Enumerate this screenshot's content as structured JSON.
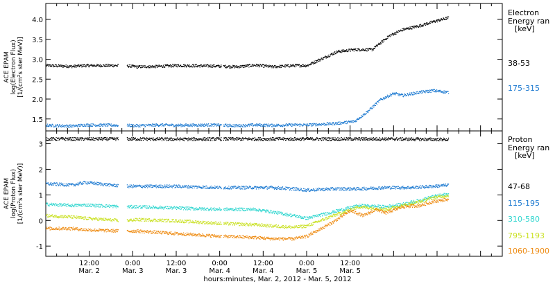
{
  "chart_data": [
    {
      "type": "scatter",
      "panel": "electron",
      "ylabel_lines": [
        "ACE EPAM",
        "log(Electron Flux)",
        "[1/(cm²s ster MeV)]"
      ],
      "ylim": [
        1.2,
        4.4
      ],
      "yticks": [
        1.5,
        2.0,
        2.5,
        3.0,
        3.5,
        4.0
      ],
      "ytick_labels": [
        "1.5",
        "2.0",
        "2.5",
        "3.0",
        "3.5",
        "4.0"
      ],
      "legend_title": [
        "Electron",
        "Energy ran",
        "[keV]"
      ],
      "series": [
        {
          "name": "38-53",
          "color": "#000000",
          "x": [
            0.0,
            0.3,
            0.45,
            0.9,
            1.05,
            1.3,
            1.5,
            1.9,
            2.2,
            2.4,
            2.6,
            2.85,
            3.0,
            3.2,
            3.35,
            3.55,
            3.75,
            3.95,
            4.1,
            4.3,
            4.45,
            4.63
          ],
          "y": [
            2.85,
            2.83,
            2.85,
            2.85,
            2.82,
            2.83,
            2.85,
            2.84,
            2.82,
            2.86,
            2.82,
            2.85,
            2.85,
            3.05,
            3.2,
            3.25,
            3.25,
            3.6,
            3.75,
            3.85,
            3.95,
            4.05
          ]
        },
        {
          "name": "175-315",
          "color": "#1a78d0",
          "x": [
            0.0,
            0.3,
            0.45,
            0.9,
            1.05,
            1.3,
            1.5,
            1.9,
            2.2,
            2.4,
            2.6,
            2.85,
            3.0,
            3.2,
            3.35,
            3.55,
            3.7,
            3.85,
            4.0,
            4.1,
            4.3,
            4.45,
            4.63
          ],
          "y": [
            1.35,
            1.33,
            1.36,
            1.35,
            1.34,
            1.36,
            1.35,
            1.36,
            1.34,
            1.36,
            1.35,
            1.36,
            1.36,
            1.38,
            1.4,
            1.45,
            1.7,
            2.0,
            2.15,
            2.1,
            2.18,
            2.22,
            2.18
          ]
        }
      ]
    },
    {
      "type": "scatter",
      "panel": "proton",
      "ylabel_lines": [
        "ACE EPAM",
        "log(Proton Flux)",
        "[1/(cm²s ster MeV)]"
      ],
      "ylim": [
        -1.4,
        3.5
      ],
      "yticks": [
        -1,
        0,
        1,
        2,
        3
      ],
      "ytick_labels": [
        "-1",
        "0",
        "1",
        "2",
        "3"
      ],
      "legend_title": [
        "Proton",
        "Energy ran",
        "[keV]"
      ],
      "series": [
        {
          "name": "47-68",
          "color": "#000000",
          "x": [
            0.0,
            0.5,
            1.0,
            1.5,
            2.0,
            2.5,
            3.0,
            3.5,
            4.0,
            4.63
          ],
          "y": [
            3.2,
            3.2,
            3.2,
            3.19,
            3.2,
            3.2,
            3.2,
            3.2,
            3.2,
            3.18
          ]
        },
        {
          "name": "115-195",
          "color": "#1a78d0",
          "x": [
            0.0,
            0.3,
            0.45,
            0.9,
            1.05,
            1.5,
            2.0,
            2.4,
            2.6,
            2.85,
            3.0,
            3.3,
            3.6,
            3.9,
            4.2,
            4.45,
            4.63
          ],
          "y": [
            1.45,
            1.4,
            1.5,
            1.35,
            1.35,
            1.35,
            1.3,
            1.3,
            1.3,
            1.25,
            1.2,
            1.25,
            1.25,
            1.3,
            1.3,
            1.35,
            1.4
          ]
        },
        {
          "name": "310-580",
          "color": "#2fd6cf",
          "x": [
            0.0,
            0.3,
            0.45,
            0.9,
            1.05,
            1.5,
            2.0,
            2.4,
            2.6,
            2.85,
            3.0,
            3.3,
            3.6,
            3.9,
            4.1,
            4.3,
            4.45,
            4.63
          ],
          "y": [
            0.65,
            0.6,
            0.62,
            0.55,
            0.55,
            0.5,
            0.45,
            0.45,
            0.35,
            0.2,
            0.1,
            0.35,
            0.6,
            0.55,
            0.65,
            0.8,
            0.95,
            1.05
          ]
        },
        {
          "name": "795-1193",
          "color": "#c9e020",
          "x": [
            0.0,
            0.3,
            0.45,
            0.9,
            1.05,
            1.5,
            2.0,
            2.4,
            2.6,
            2.85,
            3.0,
            3.3,
            3.6,
            3.9,
            4.1,
            4.3,
            4.45,
            4.63
          ],
          "y": [
            0.2,
            0.15,
            0.1,
            0.0,
            0.05,
            0.0,
            -0.1,
            -0.15,
            -0.2,
            -0.25,
            -0.2,
            0.2,
            0.55,
            0.45,
            0.6,
            0.75,
            0.9,
            1.0
          ]
        },
        {
          "name": "1060-1900",
          "color": "#ee8a10",
          "x": [
            0.0,
            0.3,
            0.45,
            0.9,
            1.05,
            1.5,
            2.0,
            2.4,
            2.6,
            2.85,
            3.0,
            3.3,
            3.5,
            3.65,
            3.8,
            3.9,
            4.1,
            4.3,
            4.45,
            4.63
          ],
          "y": [
            -0.3,
            -0.3,
            -0.35,
            -0.4,
            -0.4,
            -0.5,
            -0.6,
            -0.65,
            -0.7,
            -0.7,
            -0.6,
            -0.05,
            0.4,
            0.2,
            0.45,
            0.3,
            0.55,
            0.6,
            0.75,
            0.85
          ]
        }
      ]
    }
  ],
  "x_axis": {
    "xlim": [
      0.0,
      5.25
    ],
    "ticks": [
      {
        "x": 0.5,
        "time": "12:00",
        "date": "Mar. 2"
      },
      {
        "x": 1.0,
        "time": "0:00",
        "date": "Mar. 3"
      },
      {
        "x": 1.5,
        "time": "12:00",
        "date": "Mar. 3"
      },
      {
        "x": 2.0,
        "time": "0:00",
        "date": "Mar. 4"
      },
      {
        "x": 2.5,
        "time": "12:00",
        "date": "Mar. 4"
      },
      {
        "x": 3.0,
        "time": "0:00",
        "date": "Mar. 5"
      },
      {
        "x": 3.5,
        "time": "12:00",
        "date": "Mar. 5"
      }
    ],
    "label": "hours:minutes, Mar.  2, 2012 - Mar.  5, 2012"
  }
}
